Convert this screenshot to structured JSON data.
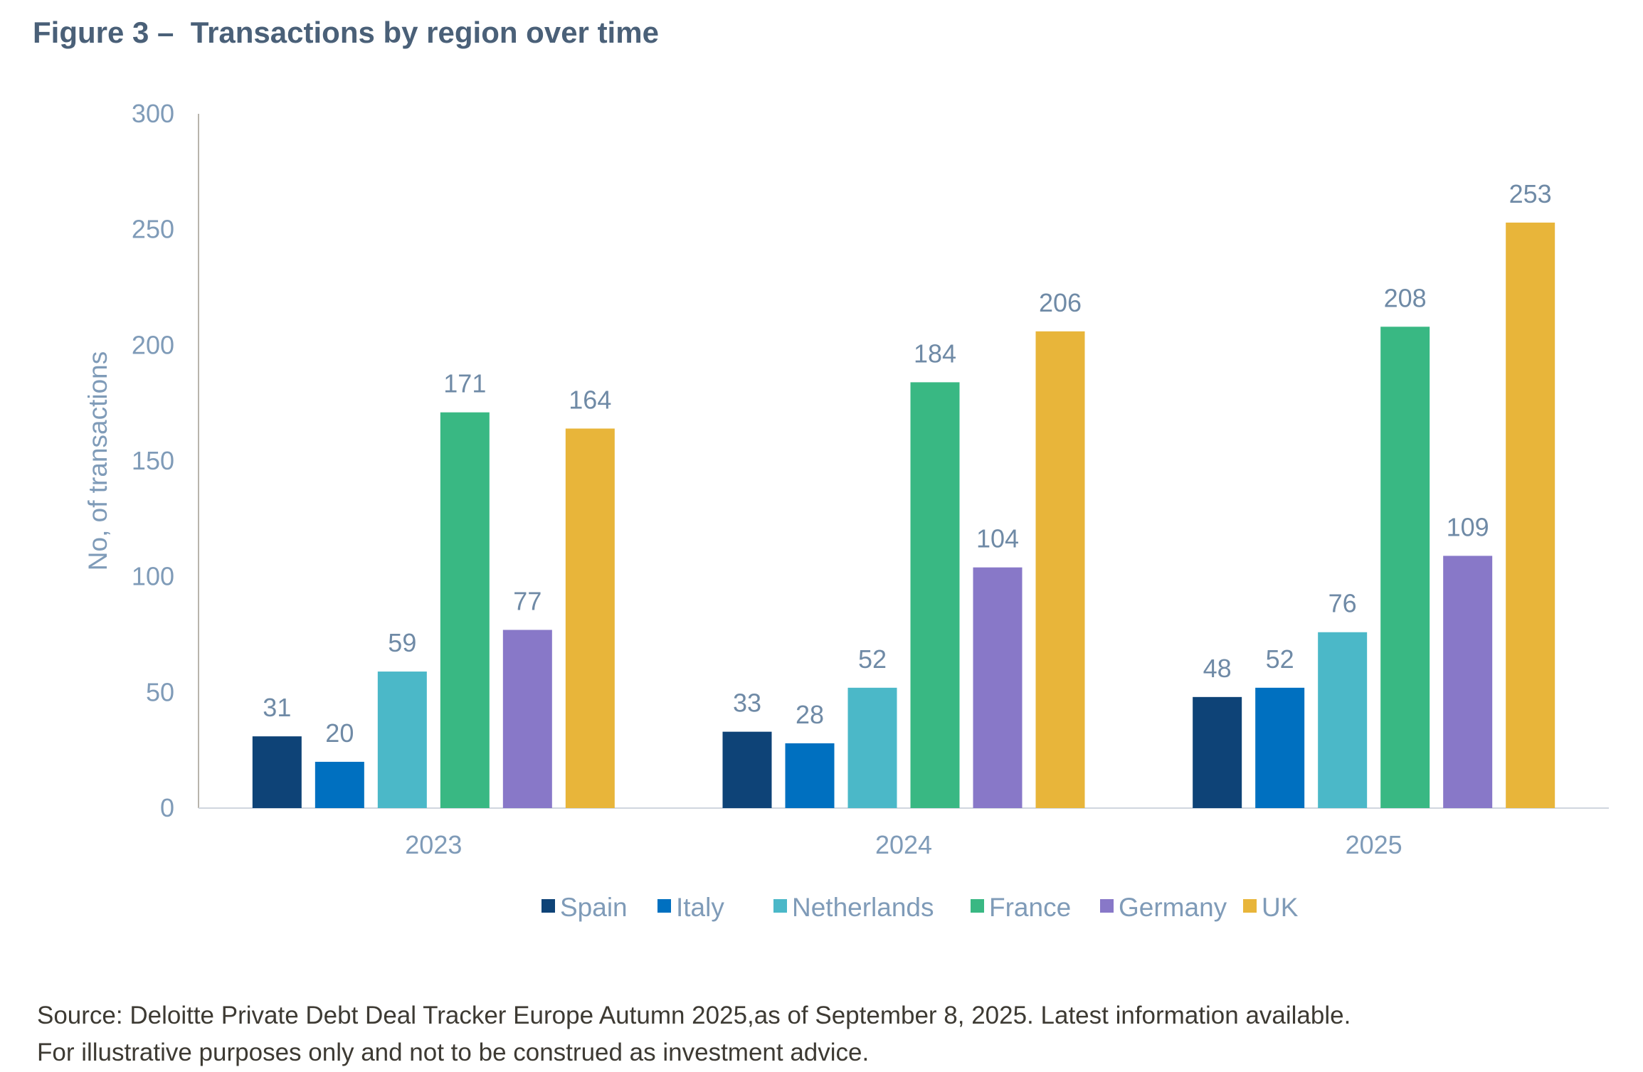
{
  "chart_data": {
    "type": "bar",
    "title": "Figure 3 –  Transactions by region over time",
    "xlabel": "",
    "ylabel": "No, of transactions",
    "ylim": [
      0,
      300
    ],
    "yticks": [
      0,
      50,
      100,
      150,
      200,
      250,
      300
    ],
    "categories": [
      "2023",
      "2024",
      "2025"
    ],
    "grid": false,
    "legend_position": "bottom",
    "data_labels": true,
    "series": [
      {
        "name": "Spain",
        "color": "#0e4377",
        "values": [
          31,
          33,
          48
        ]
      },
      {
        "name": "Italy",
        "color": "#0070c0",
        "values": [
          20,
          28,
          52
        ]
      },
      {
        "name": "Netherlands",
        "color": "#4bb8c8",
        "values": [
          59,
          52,
          76
        ]
      },
      {
        "name": "France",
        "color": "#39b883",
        "values": [
          171,
          184,
          208
        ]
      },
      {
        "name": "Germany",
        "color": "#8878c8",
        "values": [
          77,
          104,
          109
        ]
      },
      {
        "name": "UK",
        "color": "#e8b53a",
        "values": [
          164,
          206,
          253
        ]
      }
    ]
  },
  "source": {
    "line1": "Source: Deloitte Private Debt Deal Tracker Europe Autumn 2025,as of September 8, 2025. Latest information available.",
    "line2": "For illustrative purposes only and not to be construed as investment advice."
  }
}
